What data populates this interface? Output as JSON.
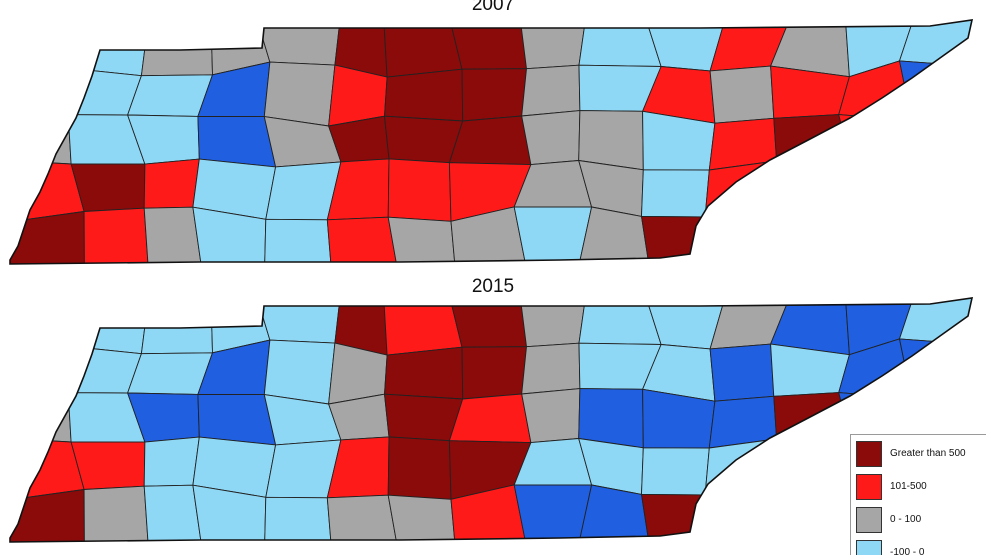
{
  "maps": [
    {
      "id": "2007",
      "title": "2007"
    },
    {
      "id": "2015",
      "title": "2015"
    }
  ],
  "legend": [
    {
      "key": "gt500",
      "label": "Greater than 500",
      "color": "#8b0a0a"
    },
    {
      "key": "r101_500",
      "label": "101-500",
      "color": "#ff1a1a"
    },
    {
      "key": "r0_100",
      "label": "0 - 100",
      "color": "#a6a6a6"
    },
    {
      "key": "neg100_0",
      "label": "-100 - 0",
      "color": "#8fd8f5"
    },
    {
      "key": "lt_neg100",
      "label": "",
      "color": "#1f5fe0"
    }
  ],
  "region_categories": {
    "2007": [
      [
        "r0_100",
        "neg100_0",
        "r0_100",
        "r0_100",
        "r0_100",
        "gt500",
        "gt500",
        "gt500",
        "r0_100",
        "neg100_0",
        "neg100_0",
        "r101_500",
        "r0_100",
        "neg100_0",
        "neg100_0"
      ],
      [
        "neg100_0",
        "neg100_0",
        "neg100_0",
        "lt_neg100",
        "r0_100",
        "r101_500",
        "gt500",
        "gt500",
        "r0_100",
        "neg100_0",
        "r101_500",
        "r0_100",
        "r101_500",
        "r101_500",
        "lt_neg100"
      ],
      [
        "r0_100",
        "neg100_0",
        "neg100_0",
        "lt_neg100",
        "r0_100",
        "gt500",
        "gt500",
        "gt500",
        "r0_100",
        "r0_100",
        "neg100_0",
        "r101_500",
        "gt500",
        "r101_500",
        "r0_100"
      ],
      [
        "r101_500",
        "gt500",
        "r101_500",
        "neg100_0",
        "neg100_0",
        "r101_500",
        "r101_500",
        "r101_500",
        "r0_100",
        "r0_100",
        "neg100_0",
        "r101_500",
        "r101_500",
        "r0_100",
        "r0_100"
      ],
      [
        "gt500",
        "r101_500",
        "r0_100",
        "neg100_0",
        "neg100_0",
        "r101_500",
        "r0_100",
        "r0_100",
        "neg100_0",
        "r0_100",
        "gt500",
        "r101_500",
        "r0_100",
        "r0_100",
        "r0_100"
      ]
    ],
    "2015": [
      [
        "neg100_0",
        "neg100_0",
        "neg100_0",
        "neg100_0",
        "neg100_0",
        "gt500",
        "r101_500",
        "gt500",
        "r0_100",
        "neg100_0",
        "neg100_0",
        "r0_100",
        "lt_neg100",
        "lt_neg100",
        "neg100_0"
      ],
      [
        "neg100_0",
        "neg100_0",
        "neg100_0",
        "lt_neg100",
        "neg100_0",
        "r0_100",
        "gt500",
        "gt500",
        "r0_100",
        "neg100_0",
        "neg100_0",
        "lt_neg100",
        "neg100_0",
        "lt_neg100",
        "lt_neg100"
      ],
      [
        "r0_100",
        "neg100_0",
        "lt_neg100",
        "lt_neg100",
        "neg100_0",
        "r0_100",
        "gt500",
        "r101_500",
        "r0_100",
        "lt_neg100",
        "lt_neg100",
        "lt_neg100",
        "gt500",
        "lt_neg100",
        "lt_neg100"
      ],
      [
        "r101_500",
        "r101_500",
        "neg100_0",
        "neg100_0",
        "neg100_0",
        "r101_500",
        "gt500",
        "gt500",
        "neg100_0",
        "neg100_0",
        "neg100_0",
        "neg100_0",
        "neg100_0",
        "lt_neg100",
        "neg100_0"
      ],
      [
        "gt500",
        "r0_100",
        "neg100_0",
        "neg100_0",
        "neg100_0",
        "r0_100",
        "r0_100",
        "r101_500",
        "lt_neg100",
        "lt_neg100",
        "gt500",
        "r0_100",
        "neg100_0",
        "r0_100",
        "neg100_0"
      ]
    ]
  }
}
